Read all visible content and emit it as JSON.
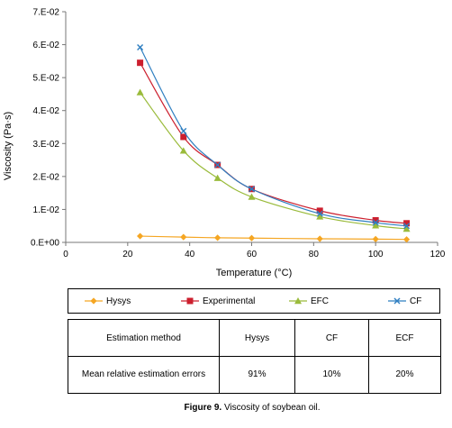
{
  "chart_data": {
    "type": "line",
    "title": "",
    "xlabel": "Temperature (°C)",
    "ylabel": "Viscosity (Pa·s)",
    "xlim": [
      0,
      120
    ],
    "ylim": [
      0,
      0.07
    ],
    "x_ticks": [
      0,
      20,
      40,
      60,
      80,
      100,
      120
    ],
    "y_ticks": [
      0,
      0.01,
      0.02,
      0.03,
      0.04,
      0.05,
      0.06,
      0.07
    ],
    "y_tick_labels": [
      "0.E+00",
      "1.E-02",
      "2.E-02",
      "3.E-02",
      "4.E-02",
      "5.E-02",
      "6.E-02",
      "7.E-02"
    ],
    "grid": false,
    "legend_position": "bottom",
    "series": [
      {
        "name": "Hysys",
        "color": "#f5a623",
        "marker": "diamond",
        "x": [
          24,
          38,
          49,
          60,
          82,
          100,
          110
        ],
        "y": [
          0.0019,
          0.0016,
          0.0014,
          0.0013,
          0.0011,
          0.001,
          0.0009
        ]
      },
      {
        "name": "Experimental",
        "color": "#cc1f2e",
        "marker": "square",
        "x": [
          24,
          38,
          49,
          60,
          82,
          100,
          110
        ],
        "y": [
          0.0545,
          0.032,
          0.0235,
          0.0162,
          0.0096,
          0.0067,
          0.0058
        ]
      },
      {
        "name": "EFC",
        "color": "#9abb3b",
        "marker": "triangle",
        "x": [
          24,
          38,
          49,
          60,
          82,
          100,
          110
        ],
        "y": [
          0.0455,
          0.0278,
          0.0195,
          0.0138,
          0.0078,
          0.0051,
          0.0041
        ]
      },
      {
        "name": "CF",
        "color": "#2f7fc1",
        "marker": "x",
        "x": [
          24,
          38,
          49,
          60,
          82,
          100,
          110
        ],
        "y": [
          0.0592,
          0.0338,
          0.0235,
          0.0162,
          0.0087,
          0.006,
          0.005
        ]
      }
    ]
  },
  "table": {
    "header": [
      "Estimation method",
      "Hysys",
      "CF",
      "ECF"
    ],
    "row": [
      "Mean relative estimation errors",
      "91%",
      "10%",
      "20%"
    ]
  },
  "caption": {
    "label": "Figure 9.",
    "text": " Viscosity of soybean oil."
  }
}
